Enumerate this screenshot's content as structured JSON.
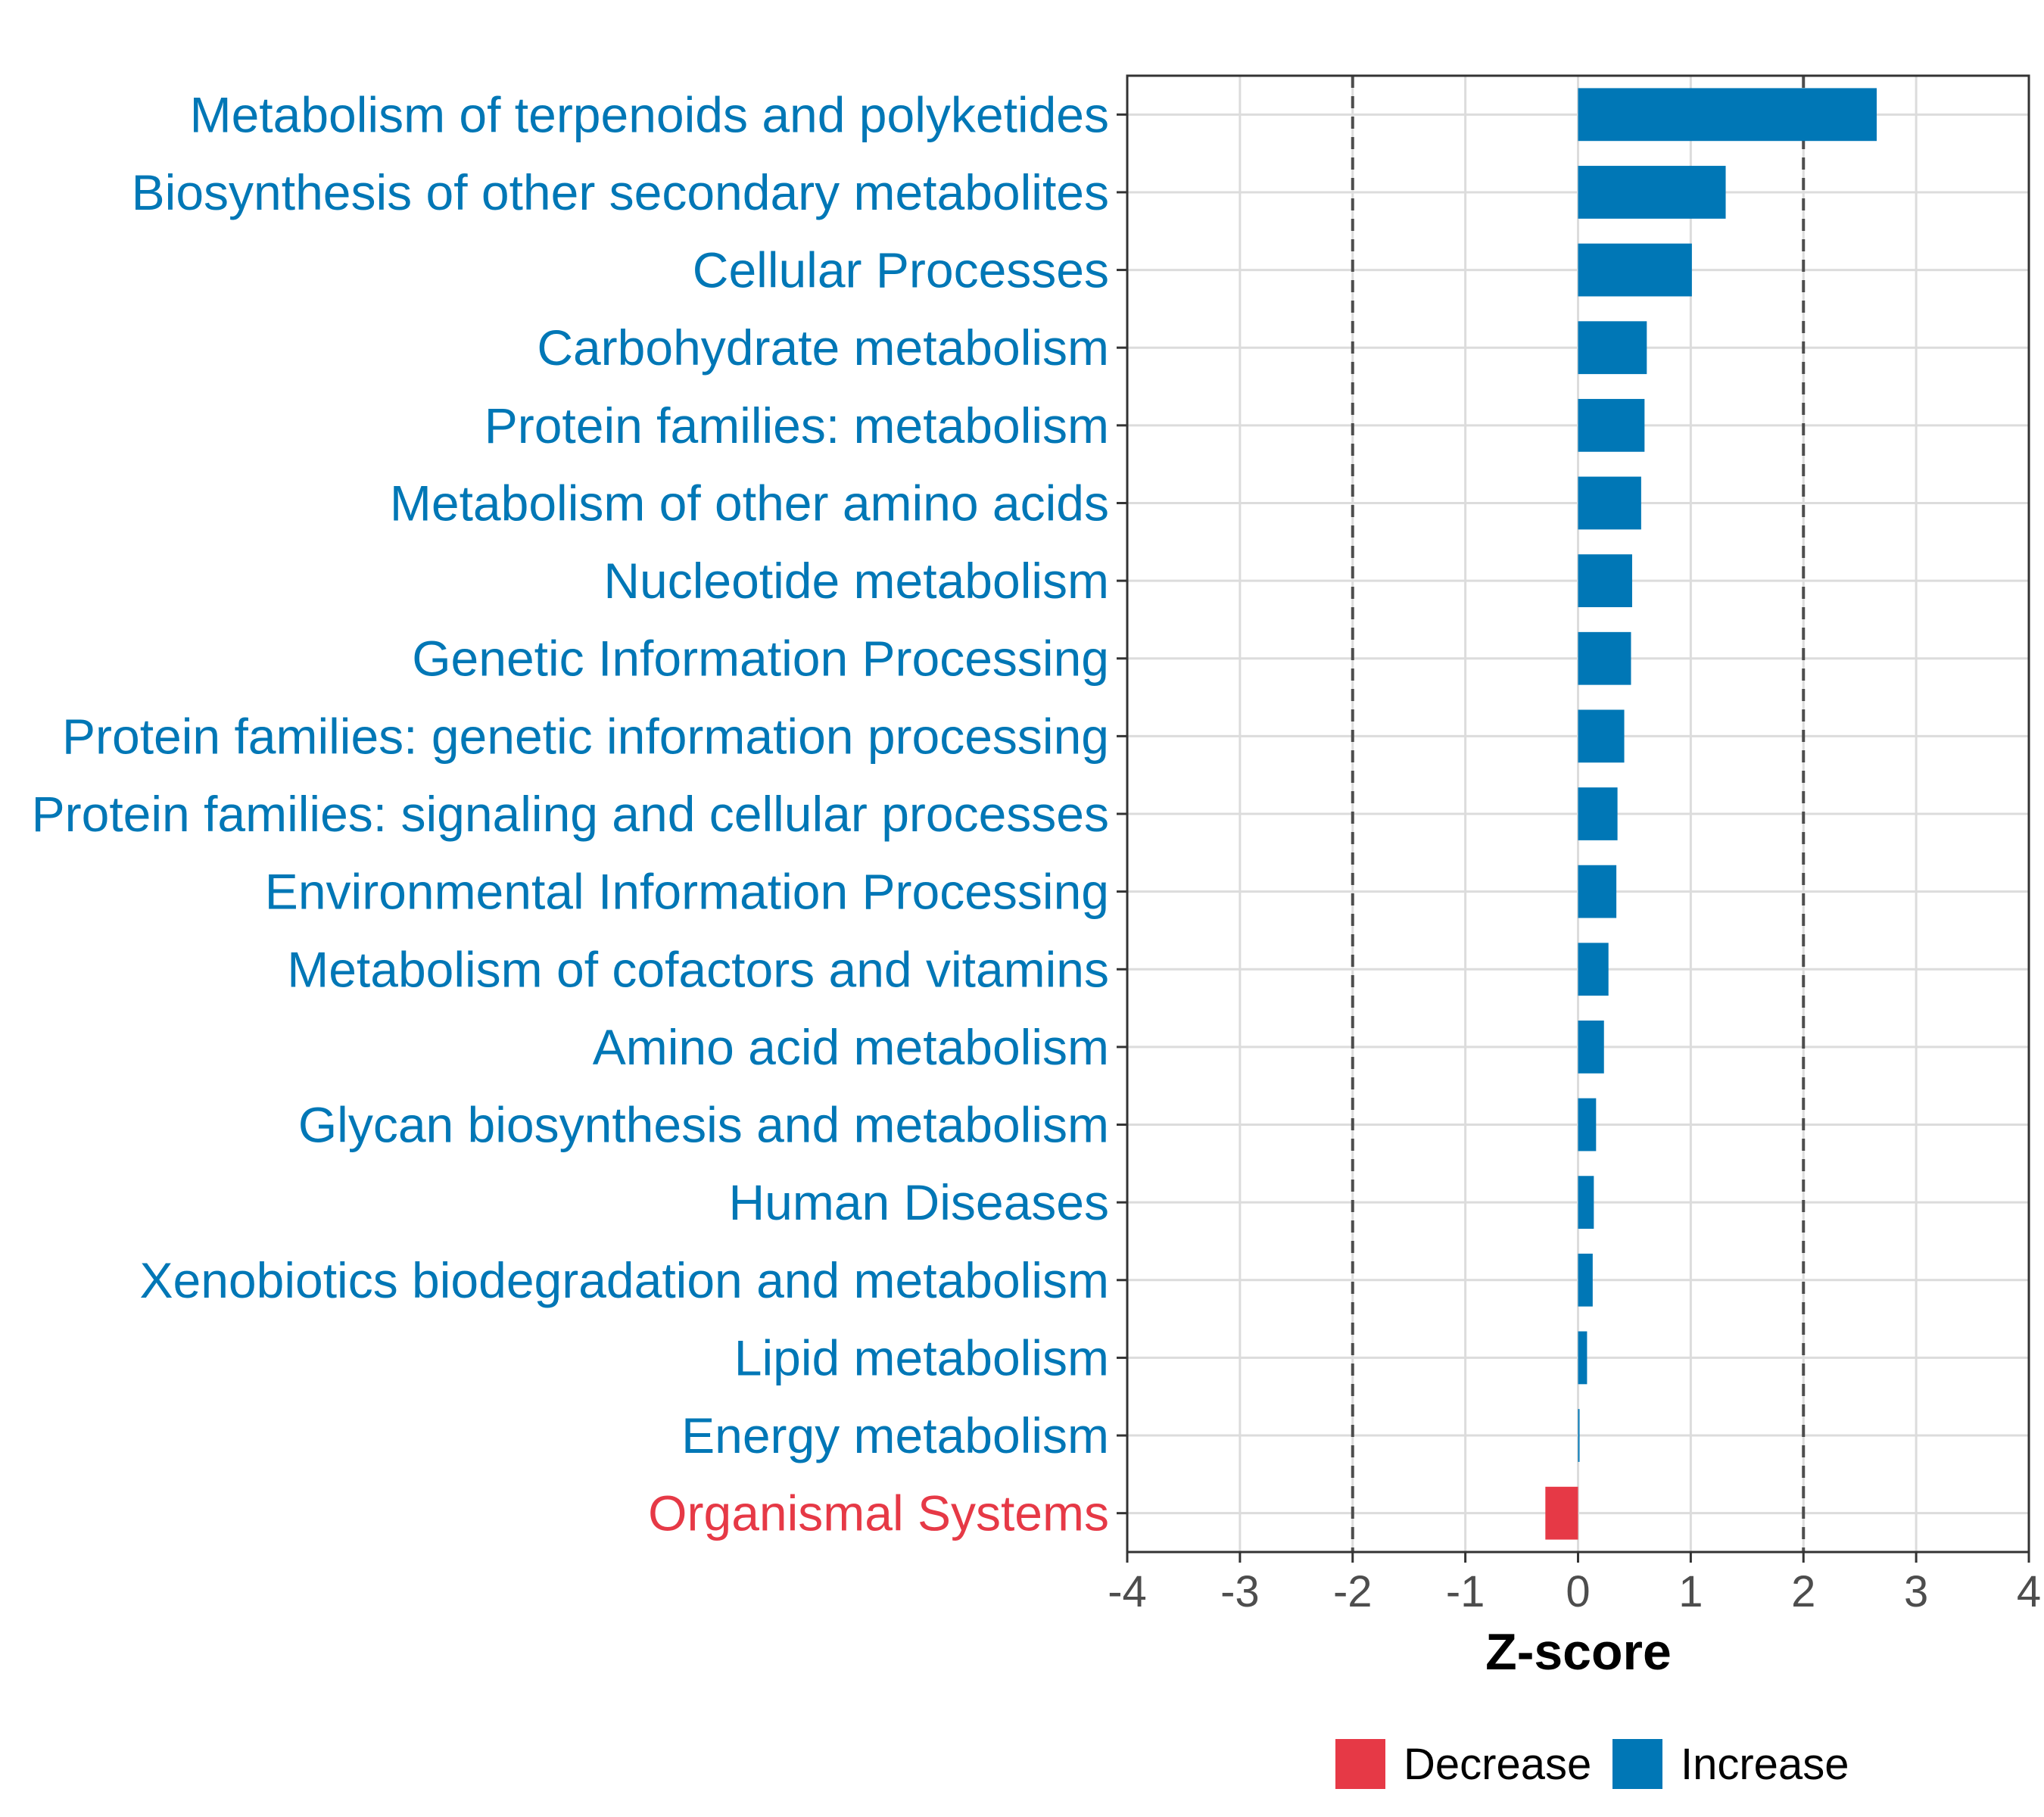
{
  "chart_data": {
    "type": "bar",
    "orientation": "horizontal",
    "categories": [
      "Metabolism of terpenoids and polyketides",
      "Biosynthesis of other secondary metabolites",
      "Cellular Processes",
      "Carbohydrate metabolism",
      "Protein families: metabolism",
      "Metabolism of other amino acids",
      "Nucleotide metabolism",
      "Genetic Information Processing",
      "Protein families: genetic information processing",
      "Protein families: signaling and cellular processes",
      "Environmental Information Processing",
      "Metabolism of cofactors and vitamins",
      "Amino acid metabolism",
      "Glycan biosynthesis and metabolism",
      "Human Diseases",
      "Xenobiotics biodegradation and metabolism",
      "Lipid metabolism",
      "Energy metabolism",
      "Organismal Systems"
    ],
    "values": [
      2.65,
      1.31,
      1.01,
      0.61,
      0.59,
      0.56,
      0.48,
      0.47,
      0.41,
      0.35,
      0.34,
      0.27,
      0.23,
      0.16,
      0.14,
      0.13,
      0.08,
      0.01,
      -0.29
    ],
    "groups": [
      "Increase",
      "Increase",
      "Increase",
      "Increase",
      "Increase",
      "Increase",
      "Increase",
      "Increase",
      "Increase",
      "Increase",
      "Increase",
      "Increase",
      "Increase",
      "Increase",
      "Increase",
      "Increase",
      "Increase",
      "Increase",
      "Decrease"
    ],
    "xlabel": "Z-score",
    "ylabel": "",
    "xlim": [
      -4,
      4
    ],
    "xticks": [
      "-4",
      "-3",
      "-2",
      "-1",
      "0",
      "1",
      "2",
      "3",
      "4"
    ],
    "threshold_lines": [
      -2,
      2
    ],
    "grid": true,
    "legend": {
      "position": "bottom",
      "entries": [
        {
          "label": "Decrease",
          "color": "#E63946"
        },
        {
          "label": "Increase",
          "color": "#0077B6"
        }
      ]
    },
    "colors": {
      "Increase": "#0077B6",
      "Decrease": "#E63946"
    }
  }
}
